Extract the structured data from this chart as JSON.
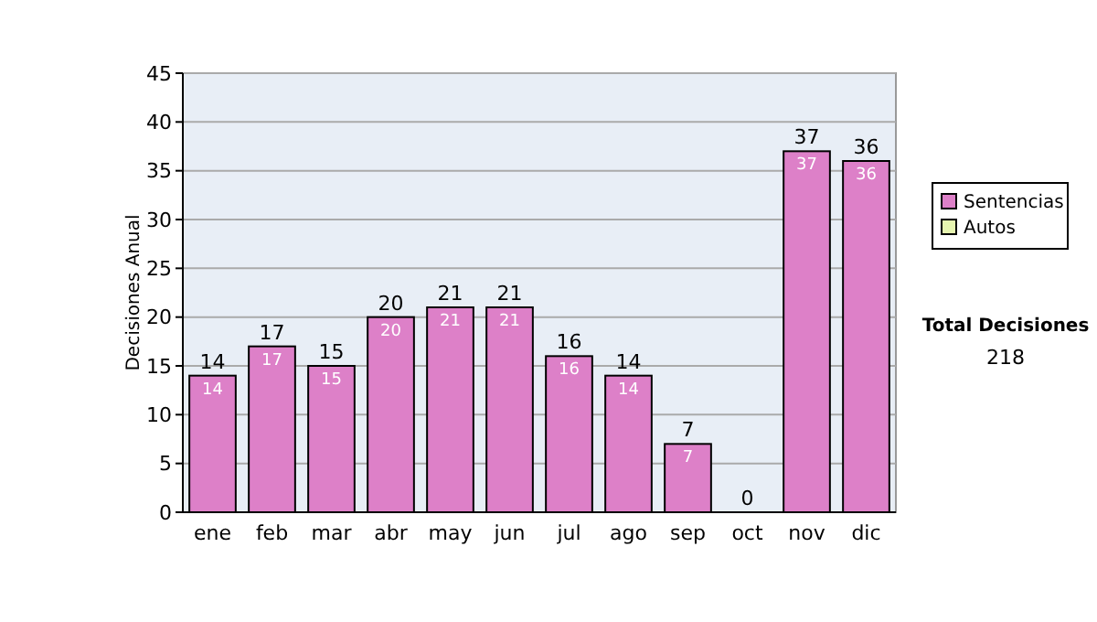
{
  "chart_data": {
    "type": "bar",
    "ylabel": "Decisiones Anual",
    "categories": [
      "ene",
      "feb",
      "mar",
      "abr",
      "may",
      "jun",
      "jul",
      "ago",
      "sep",
      "oct",
      "nov",
      "dic"
    ],
    "series": [
      {
        "name": "Sentencias",
        "color": "#dd80c8",
        "values": [
          14,
          17,
          15,
          20,
          21,
          21,
          16,
          14,
          7,
          0,
          37,
          36
        ],
        "value_labels": [
          "14",
          "17",
          "15",
          "20",
          "21",
          "21",
          "16",
          "14",
          "7",
          null,
          "37",
          "36"
        ]
      },
      {
        "name": "Autos",
        "color": "#e6f5b0",
        "values": [
          0,
          0,
          0,
          0,
          0,
          0,
          0,
          0,
          0,
          0,
          0,
          0
        ]
      }
    ],
    "stacked": true,
    "totals": [
      "14",
      "17",
      "15",
      "20",
      "21",
      "21",
      "16",
      "14",
      "7",
      "0",
      "37",
      "36"
    ],
    "ylim": [
      0,
      45
    ],
    "yticks": [
      0,
      5,
      10,
      15,
      20,
      25,
      30,
      35,
      40,
      45
    ],
    "grid": "y",
    "legend": "right",
    "annotations": [
      "Total Decisiones",
      "218"
    ]
  }
}
